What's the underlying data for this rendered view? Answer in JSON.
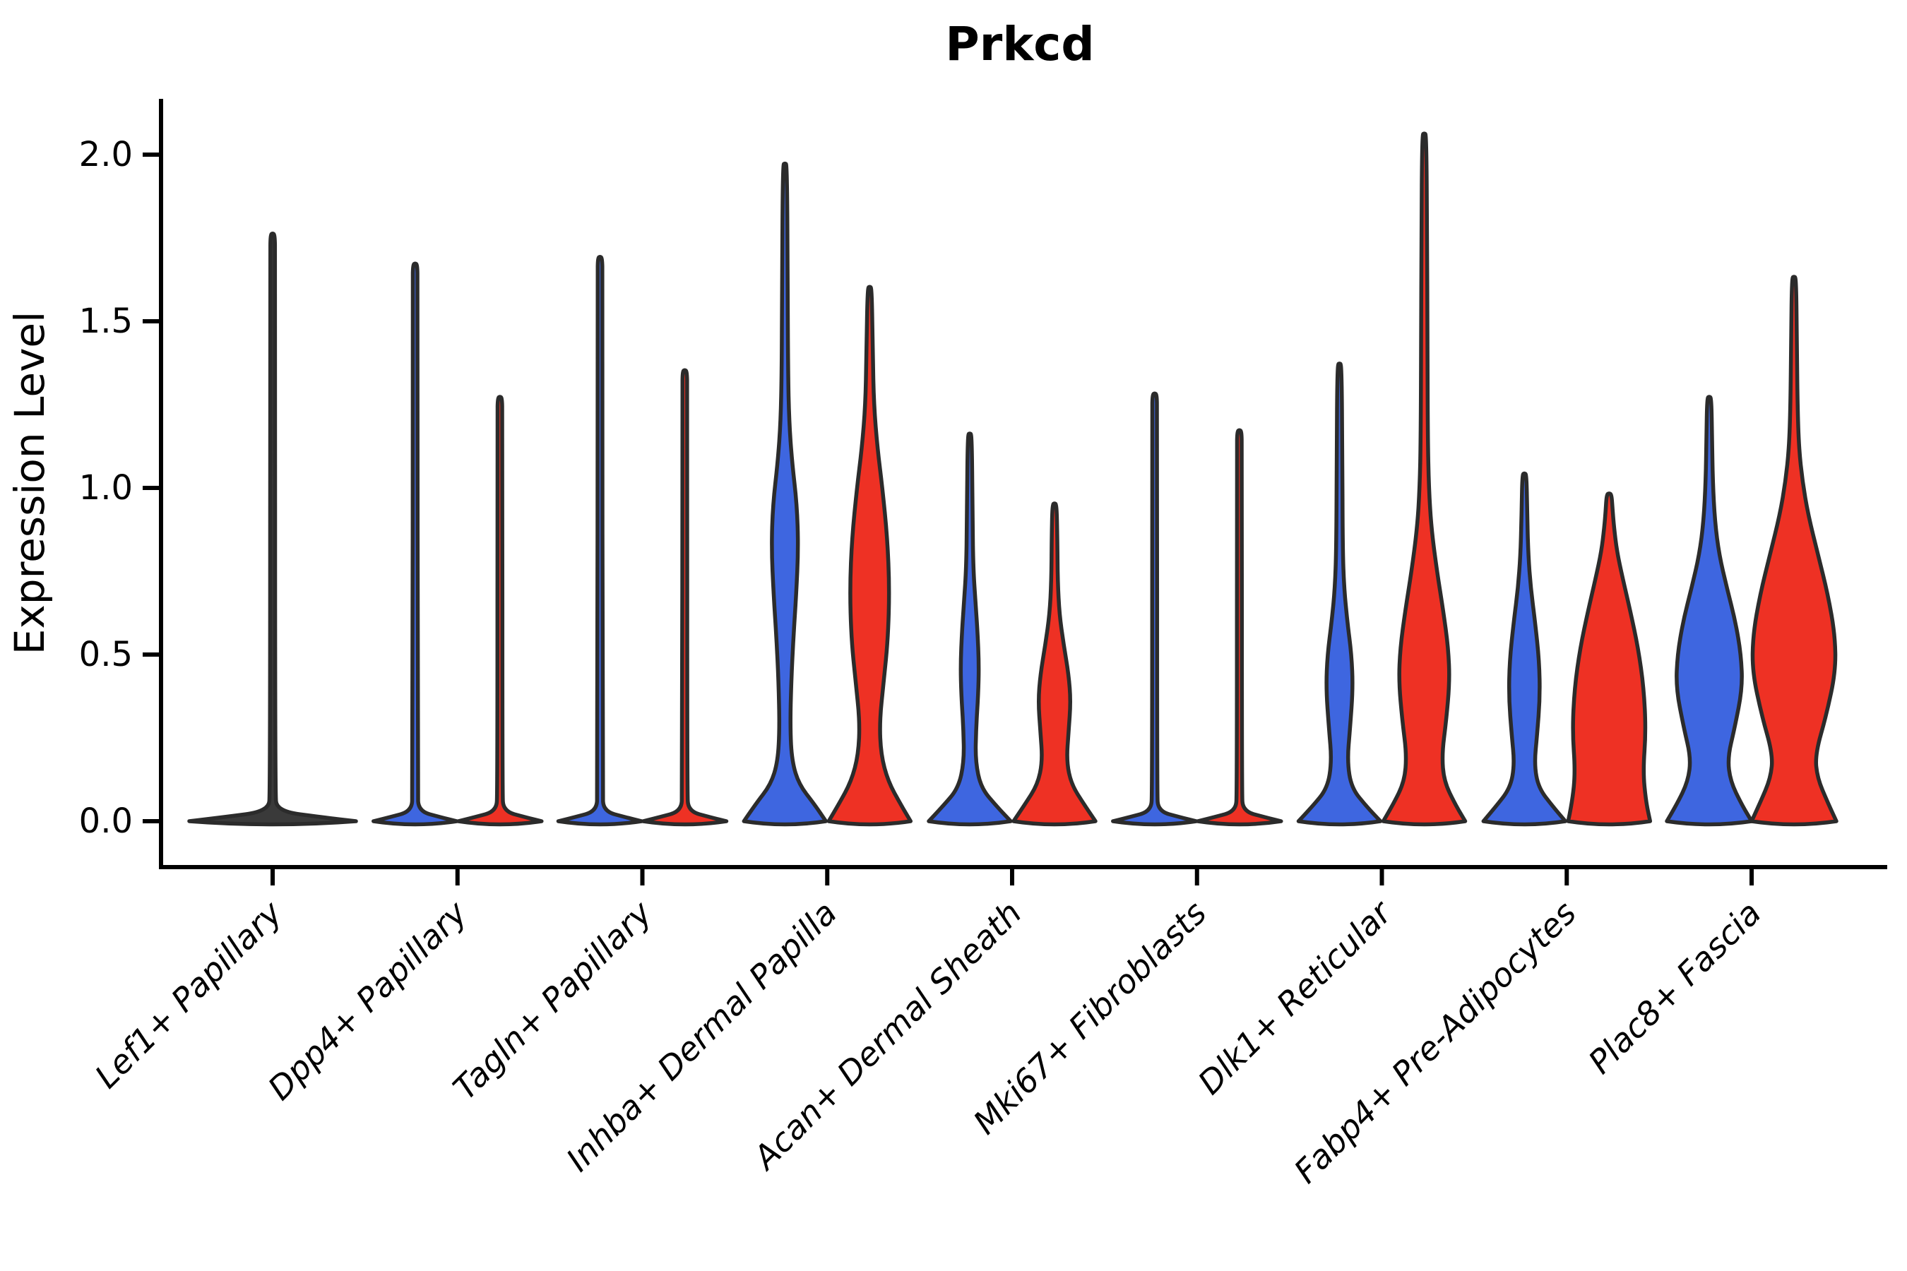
{
  "title": "Prkcd",
  "y_axis": {
    "label": "Expression Level",
    "tick_labels": [
      "0.0",
      "0.5",
      "1.0",
      "1.5",
      "2.0"
    ],
    "tick_values": [
      0.0,
      0.5,
      1.0,
      1.5,
      2.0
    ]
  },
  "x_axis": {
    "categories": [
      "Lef1+ Papillary",
      "Dpp4+ Papillary",
      "Tagln+ Papillary",
      "Inhba+ Dermal Papilla",
      "Acan+ Dermal Sheath",
      "Mki67+ Fibroblasts",
      "Dlk1+ Reticular",
      "Fabp4+ Pre-Adipocytes",
      "Plac8+ Fascia"
    ]
  },
  "colors": {
    "blue": "#3e66e0",
    "red": "#ee3124",
    "neutral": "#3a3a3a",
    "outline": "#2b2b2b",
    "axis": "#000000"
  },
  "chart_data": {
    "type": "violin",
    "title": "Prkcd",
    "ylabel": "Expression Level",
    "ylim": [
      -0.07,
      2.17
    ],
    "yticks": [
      0.0,
      0.5,
      1.0,
      1.5,
      2.0
    ],
    "grid": false,
    "legend": "none",
    "profile_format": "[expression_value, half_width_px] from 0 up to violin max",
    "categories": [
      "Lef1+ Papillary",
      "Dpp4+ Papillary",
      "Tagln+ Papillary",
      "Inhba+ Dermal Papilla",
      "Acan+ Dermal Sheath",
      "Mki67+ Fibroblasts",
      "Dlk1+ Reticular",
      "Fabp4+ Pre-Adipocytes",
      "Plac8+ Fascia"
    ],
    "groups": [
      {
        "category": "Lef1+ Papillary",
        "violins": [
          {
            "series": "single",
            "position": "center",
            "color": "neutral",
            "max": 1.76,
            "profile": [
              [
                0,
                118
              ],
              [
                0.012,
                70
              ],
              [
                0.03,
                6
              ],
              [
                0.09,
                3.5
              ],
              [
                1.7,
                3.5
              ],
              [
                1.76,
                3
              ]
            ]
          }
        ]
      },
      {
        "category": "Dpp4+ Papillary",
        "violins": [
          {
            "series": "blue",
            "position": "left",
            "color": "blue",
            "max": 1.67,
            "profile": [
              [
                0,
                59
              ],
              [
                0.012,
                36
              ],
              [
                0.03,
                5
              ],
              [
                0.09,
                3.5
              ],
              [
                1.62,
                3.5
              ],
              [
                1.67,
                3
              ]
            ]
          },
          {
            "series": "red",
            "position": "right",
            "color": "red",
            "max": 1.27,
            "profile": [
              [
                0,
                59
              ],
              [
                0.012,
                36
              ],
              [
                0.03,
                5
              ],
              [
                0.09,
                3.5
              ],
              [
                1.22,
                3.5
              ],
              [
                1.27,
                3
              ]
            ]
          }
        ]
      },
      {
        "category": "Tagln+ Papillary",
        "violins": [
          {
            "series": "blue",
            "position": "left",
            "color": "blue",
            "max": 1.69,
            "profile": [
              [
                0,
                59
              ],
              [
                0.012,
                36
              ],
              [
                0.03,
                5
              ],
              [
                0.09,
                3.5
              ],
              [
                1.64,
                3.5
              ],
              [
                1.69,
                3
              ]
            ]
          },
          {
            "series": "red",
            "position": "right",
            "color": "red",
            "max": 1.35,
            "profile": [
              [
                0,
                59
              ],
              [
                0.012,
                36
              ],
              [
                0.03,
                5
              ],
              [
                0.09,
                3.5
              ],
              [
                1.3,
                3.5
              ],
              [
                1.35,
                3
              ]
            ]
          }
        ]
      },
      {
        "category": "Inhba+ Dermal Papilla",
        "violins": [
          {
            "series": "blue",
            "position": "left",
            "color": "blue",
            "max": 1.97,
            "profile": [
              [
                0,
                58
              ],
              [
                0.05,
                42
              ],
              [
                0.11,
                20
              ],
              [
                0.18,
                10
              ],
              [
                0.28,
                7.5
              ],
              [
                0.42,
                9
              ],
              [
                0.55,
                12
              ],
              [
                0.68,
                16
              ],
              [
                0.82,
                19
              ],
              [
                0.95,
                17
              ],
              [
                1.08,
                10
              ],
              [
                1.2,
                6
              ],
              [
                1.35,
                4.5
              ],
              [
                1.6,
                4
              ],
              [
                1.97,
                3
              ]
            ]
          },
          {
            "series": "red",
            "position": "right",
            "color": "red",
            "max": 1.6,
            "profile": [
              [
                0,
                58
              ],
              [
                0.05,
                44
              ],
              [
                0.12,
                26
              ],
              [
                0.2,
                16
              ],
              [
                0.3,
                14
              ],
              [
                0.42,
                20
              ],
              [
                0.55,
                26
              ],
              [
                0.7,
                28
              ],
              [
                0.85,
                25
              ],
              [
                1.0,
                18
              ],
              [
                1.12,
                11
              ],
              [
                1.25,
                6
              ],
              [
                1.4,
                4.5
              ],
              [
                1.6,
                3
              ]
            ]
          }
        ]
      },
      {
        "category": "Acan+ Dermal Sheath",
        "violins": [
          {
            "series": "blue",
            "position": "left",
            "color": "blue",
            "max": 1.16,
            "profile": [
              [
                0,
                58
              ],
              [
                0.045,
                38
              ],
              [
                0.1,
                16
              ],
              [
                0.18,
                8
              ],
              [
                0.28,
                9
              ],
              [
                0.38,
                12
              ],
              [
                0.47,
                13
              ],
              [
                0.57,
                11
              ],
              [
                0.66,
                8
              ],
              [
                0.76,
                5
              ],
              [
                0.9,
                4
              ],
              [
                1.16,
                3
              ]
            ]
          },
          {
            "series": "red",
            "position": "right",
            "color": "red",
            "max": 0.95,
            "profile": [
              [
                0,
                58
              ],
              [
                0.05,
                42
              ],
              [
                0.11,
                24
              ],
              [
                0.18,
                17
              ],
              [
                0.27,
                20
              ],
              [
                0.36,
                23
              ],
              [
                0.44,
                20
              ],
              [
                0.53,
                13
              ],
              [
                0.62,
                7
              ],
              [
                0.72,
                4.5
              ],
              [
                0.85,
                4
              ],
              [
                0.95,
                3
              ]
            ]
          }
        ]
      },
      {
        "category": "Mki67+ Fibroblasts",
        "violins": [
          {
            "series": "blue",
            "position": "left",
            "color": "blue",
            "max": 1.28,
            "profile": [
              [
                0,
                59
              ],
              [
                0.012,
                36
              ],
              [
                0.03,
                5
              ],
              [
                0.09,
                3.5
              ],
              [
                1.23,
                3.5
              ],
              [
                1.28,
                3
              ]
            ]
          },
          {
            "series": "red",
            "position": "right",
            "color": "red",
            "max": 1.17,
            "profile": [
              [
                0,
                59
              ],
              [
                0.012,
                36
              ],
              [
                0.03,
                5
              ],
              [
                0.09,
                3.5
              ],
              [
                1.12,
                3.5
              ],
              [
                1.17,
                3
              ]
            ]
          }
        ]
      },
      {
        "category": "Dlk1+ Reticular",
        "violins": [
          {
            "series": "blue",
            "position": "left",
            "color": "blue",
            "max": 1.37,
            "profile": [
              [
                0,
                58
              ],
              [
                0.045,
                38
              ],
              [
                0.1,
                17
              ],
              [
                0.18,
                11
              ],
              [
                0.28,
                15
              ],
              [
                0.4,
                19
              ],
              [
                0.5,
                17
              ],
              [
                0.6,
                11
              ],
              [
                0.7,
                6.5
              ],
              [
                0.82,
                4.5
              ],
              [
                1.1,
                4
              ],
              [
                1.37,
                3
              ]
            ]
          },
          {
            "series": "red",
            "position": "right",
            "color": "red",
            "max": 2.06,
            "profile": [
              [
                0,
                58
              ],
              [
                0.05,
                44
              ],
              [
                0.12,
                28
              ],
              [
                0.2,
                25
              ],
              [
                0.3,
                31
              ],
              [
                0.42,
                36
              ],
              [
                0.52,
                34
              ],
              [
                0.63,
                27
              ],
              [
                0.75,
                18
              ],
              [
                0.88,
                10
              ],
              [
                1.0,
                6.5
              ],
              [
                1.15,
                5
              ],
              [
                1.45,
                4.5
              ],
              [
                1.75,
                4
              ],
              [
                2.06,
                3
              ]
            ]
          }
        ]
      },
      {
        "category": "Fabp4+ Pre-Adipocytes",
        "violins": [
          {
            "series": "blue",
            "position": "left",
            "color": "blue",
            "max": 1.04,
            "profile": [
              [
                0,
                58
              ],
              [
                0.045,
                40
              ],
              [
                0.1,
                20
              ],
              [
                0.17,
                14
              ],
              [
                0.26,
                18
              ],
              [
                0.37,
                22
              ],
              [
                0.48,
                21
              ],
              [
                0.6,
                15
              ],
              [
                0.7,
                9
              ],
              [
                0.8,
                5.5
              ],
              [
                0.92,
                4
              ],
              [
                1.04,
                3
              ]
            ]
          },
          {
            "series": "red",
            "position": "right",
            "color": "red",
            "max": 0.98,
            "profile": [
              [
                0,
                58
              ],
              [
                0.06,
                52
              ],
              [
                0.15,
                48
              ],
              [
                0.27,
                52
              ],
              [
                0.4,
                49
              ],
              [
                0.52,
                41
              ],
              [
                0.63,
                30
              ],
              [
                0.73,
                19
              ],
              [
                0.81,
                11
              ],
              [
                0.88,
                7
              ],
              [
                0.93,
                5
              ],
              [
                0.98,
                3.5
              ]
            ]
          }
        ]
      },
      {
        "category": "Plac8+ Fascia",
        "violins": [
          {
            "series": "blue",
            "position": "left",
            "color": "blue",
            "max": 1.27,
            "profile": [
              [
                0,
                60
              ],
              [
                0.05,
                46
              ],
              [
                0.12,
                30
              ],
              [
                0.19,
                26
              ],
              [
                0.28,
                36
              ],
              [
                0.4,
                47
              ],
              [
                0.5,
                45
              ],
              [
                0.6,
                37
              ],
              [
                0.7,
                25
              ],
              [
                0.8,
                14
              ],
              [
                0.9,
                8
              ],
              [
                1.02,
                5
              ],
              [
                1.15,
                4
              ],
              [
                1.27,
                3
              ]
            ]
          },
          {
            "series": "red",
            "position": "right",
            "color": "red",
            "max": 1.63,
            "profile": [
              [
                0,
                60
              ],
              [
                0.055,
                48
              ],
              [
                0.13,
                33
              ],
              [
                0.2,
                30
              ],
              [
                0.32,
                46
              ],
              [
                0.45,
                59
              ],
              [
                0.56,
                58
              ],
              [
                0.68,
                48
              ],
              [
                0.8,
                34
              ],
              [
                0.92,
                20
              ],
              [
                1.02,
                12
              ],
              [
                1.12,
                7
              ],
              [
                1.25,
                5
              ],
              [
                1.45,
                4
              ],
              [
                1.63,
                3
              ]
            ]
          }
        ]
      }
    ]
  }
}
